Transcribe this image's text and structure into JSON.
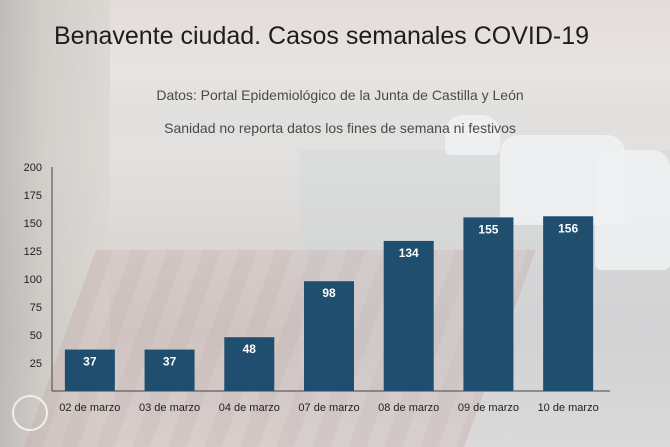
{
  "chart_data": {
    "type": "bar",
    "title": "Benavente ciudad. Casos semanales COVID-19",
    "subtitle": [
      "Datos: Portal Epidemiológico de la Junta de Castilla y León",
      "Sanidad no reporta datos los fines de semana ni festivos"
    ],
    "categories": [
      "02 de marzo",
      "03 de marzo",
      "04 de marzo",
      "07 de marzo",
      "08 de marzo",
      "09 de marzo",
      "10 de marzo"
    ],
    "values": [
      37,
      37,
      48,
      98,
      134,
      155,
      156
    ],
    "ylim": [
      0,
      200
    ],
    "yticks": [
      25,
      50,
      75,
      100,
      125,
      150,
      175,
      200
    ],
    "bar_color": "#1f4e6e",
    "value_label_color": "#ffffff",
    "grid": false,
    "legend": "none"
  }
}
